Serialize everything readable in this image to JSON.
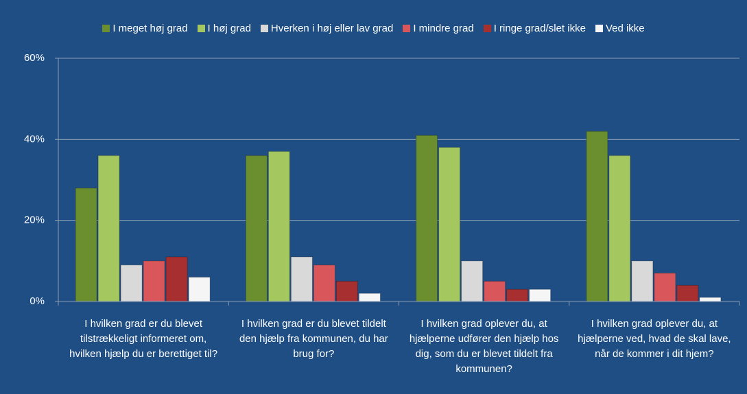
{
  "chart_data": {
    "type": "bar",
    "categories": [
      "I hvilken grad er du blevet tilstrækkeligt informeret om, hvilken hjælp du er berettiget til?",
      "I hvilken grad er du blevet tildelt den hjælp fra kommunen, du har brug for?",
      "I hvilken grad oplever du, at hjælperne udfører den hjælp hos dig, som du er blevet tildelt fra kommunen?",
      "I hvilken grad oplever du, at hjælperne ved, hvad de skal lave, når de kommer i dit hjem?"
    ],
    "series": [
      {
        "name": "I meget høj grad",
        "color": "#6b8e2f",
        "values": [
          28,
          36,
          41,
          42
        ]
      },
      {
        "name": "I høj grad",
        "color": "#a4c75f",
        "values": [
          36,
          37,
          38,
          36
        ]
      },
      {
        "name": "Hverken i høj eller lav grad",
        "color": "#d9d9d9",
        "values": [
          9,
          11,
          10,
          10
        ]
      },
      {
        "name": "I mindre grad",
        "color": "#d9575a",
        "values": [
          10,
          9,
          5,
          7
        ]
      },
      {
        "name": "I ringe grad/slet ikke",
        "color": "#a82f30",
        "values": [
          11,
          5,
          3,
          4
        ]
      },
      {
        "name": "Ved ikke",
        "color": "#f5f5f5",
        "values": [
          6,
          2,
          3,
          1
        ]
      }
    ],
    "ylim": [
      0,
      60
    ],
    "yticks": [
      {
        "value": 0,
        "label": "0%"
      },
      {
        "value": 20,
        "label": "20%"
      },
      {
        "value": 40,
        "label": "40%"
      },
      {
        "value": 60,
        "label": "60%"
      }
    ],
    "grid": true,
    "legend": "top"
  }
}
